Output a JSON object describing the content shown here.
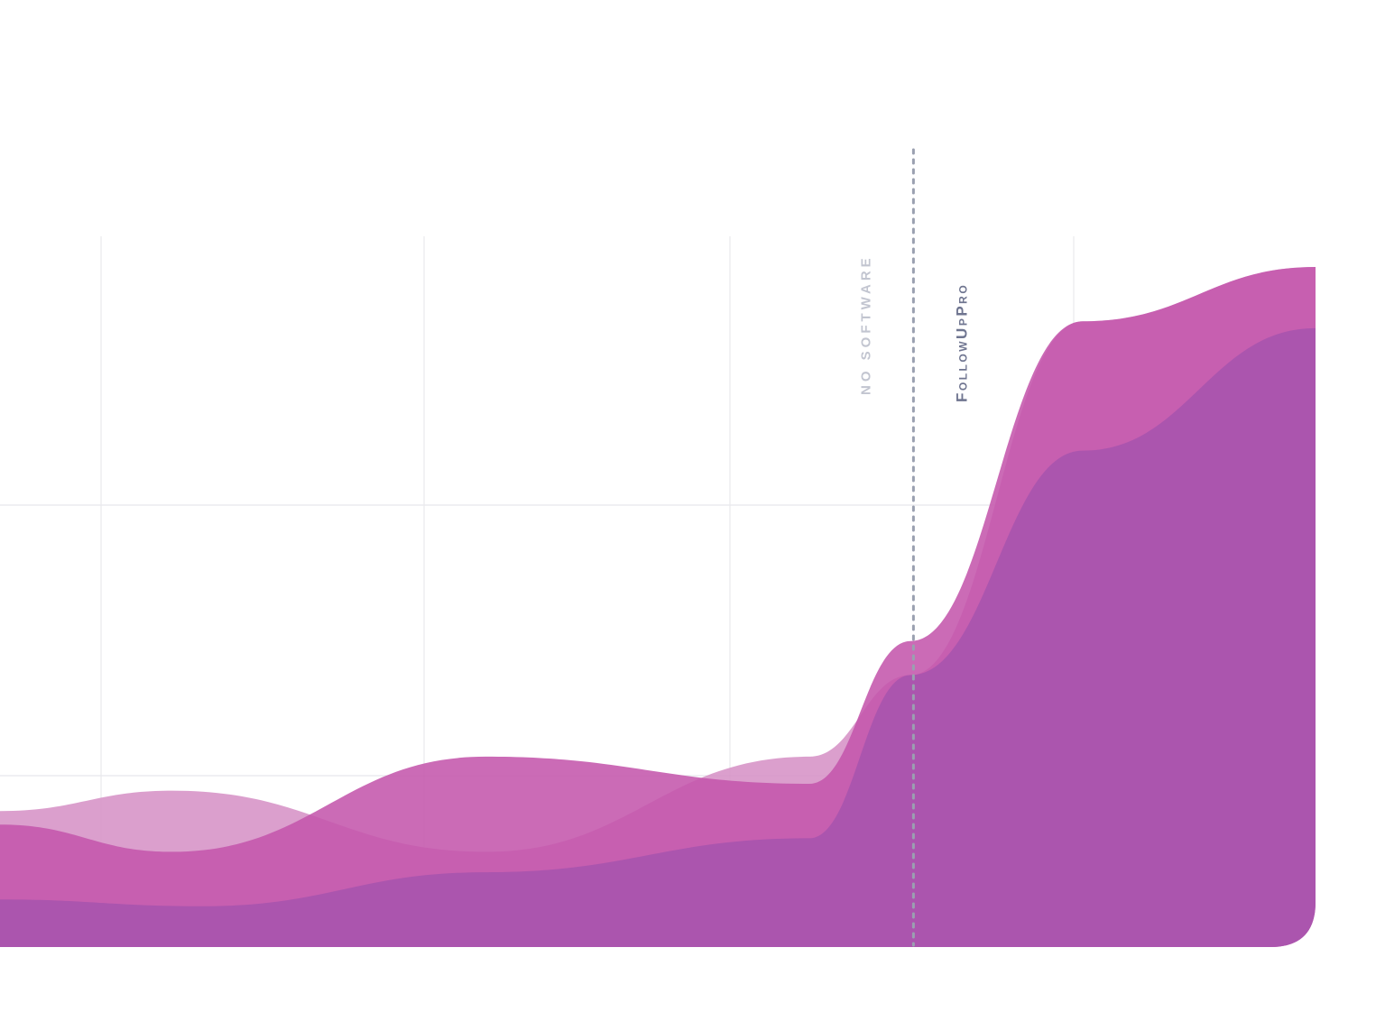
{
  "chart_data": {
    "type": "area",
    "title": "",
    "xlabel": "",
    "ylabel": "",
    "grid": true,
    "legend": "none",
    "xlim": [
      0,
      13
    ],
    "ylim": [
      0,
      100
    ],
    "annotations": [
      {
        "type": "vline",
        "x": 9.0,
        "label_before": "NO SOFTWARE",
        "label_after": "FollowUpPro"
      }
    ],
    "series": [
      {
        "color": "#d58ec4",
        "opacity": 0.85,
        "x": [
          0,
          1.7,
          4.8,
          8.0,
          9.0,
          10.7,
          13
        ],
        "values": [
          20,
          23,
          14,
          28,
          40,
          92,
          100
        ]
      },
      {
        "color": "#c456ac",
        "opacity": 0.88,
        "x": [
          0,
          1.7,
          4.8,
          8.0,
          9.0,
          10.7,
          13
        ],
        "values": [
          18,
          14,
          28,
          24,
          45,
          92,
          100
        ]
      },
      {
        "color": "#aa55ad",
        "opacity": 0.97,
        "x": [
          0,
          2.0,
          4.8,
          8.0,
          9.0,
          10.7,
          13
        ],
        "values": [
          7,
          6,
          11,
          16,
          40,
          73,
          91
        ]
      }
    ]
  }
}
